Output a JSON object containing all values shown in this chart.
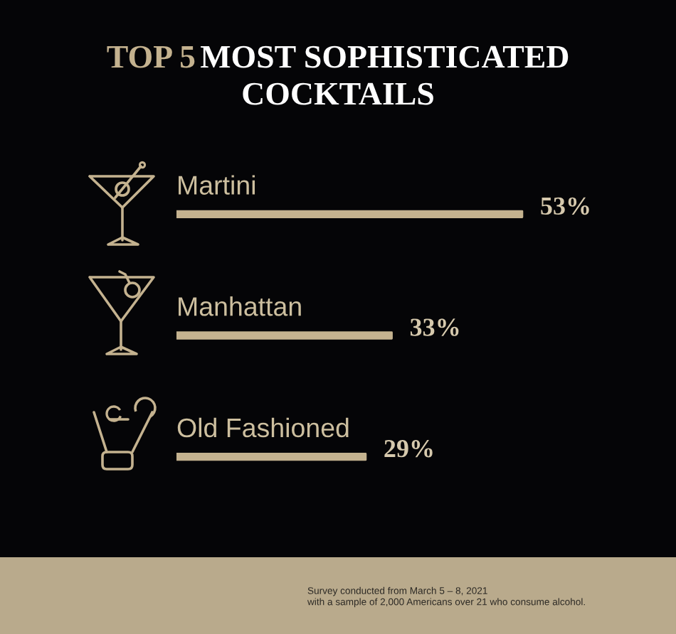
{
  "chart_data": {
    "type": "bar",
    "orientation": "horizontal",
    "title": "TOP 5 MOST SOPHISTICATED COCKTAILS",
    "categories": [
      "Martini",
      "Manhattan",
      "Old Fashioned"
    ],
    "values": [
      53,
      33,
      29
    ],
    "value_labels": [
      "53%",
      "33%",
      "29%"
    ],
    "color": "#c4b28f",
    "annotations": [
      "Survey conducted from March 5 – 8, 2021\nwith a sample of 2,000 Americans over 21 who consume alcohol."
    ]
  }
}
